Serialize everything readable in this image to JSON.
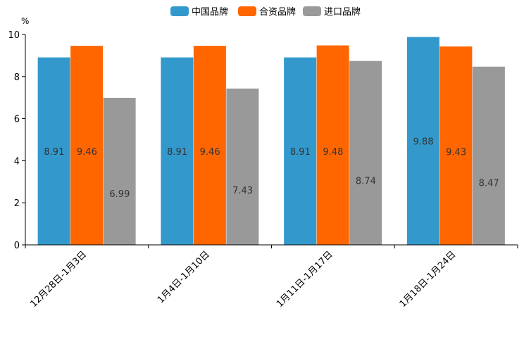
{
  "chart_data": {
    "type": "bar",
    "unit_label": "%",
    "categories": [
      "12月28日-1月3日",
      "1月4日-1月10日",
      "1月11日-1月17日",
      "1月18日-1月24日"
    ],
    "series": [
      {
        "name": "中国品牌",
        "color": "#3399cc",
        "values": [
          8.91,
          8.91,
          8.91,
          9.88
        ]
      },
      {
        "name": "合资品牌",
        "color": "#ff6600",
        "values": [
          9.46,
          9.46,
          9.48,
          9.43
        ]
      },
      {
        "name": "进口品牌",
        "color": "#999999",
        "values": [
          6.99,
          7.43,
          8.74,
          8.47
        ]
      }
    ],
    "ylim": [
      0,
      10
    ],
    "yticks": [
      0,
      2,
      4,
      6,
      8,
      10
    ],
    "legend_position": "top-center",
    "grid": false
  }
}
